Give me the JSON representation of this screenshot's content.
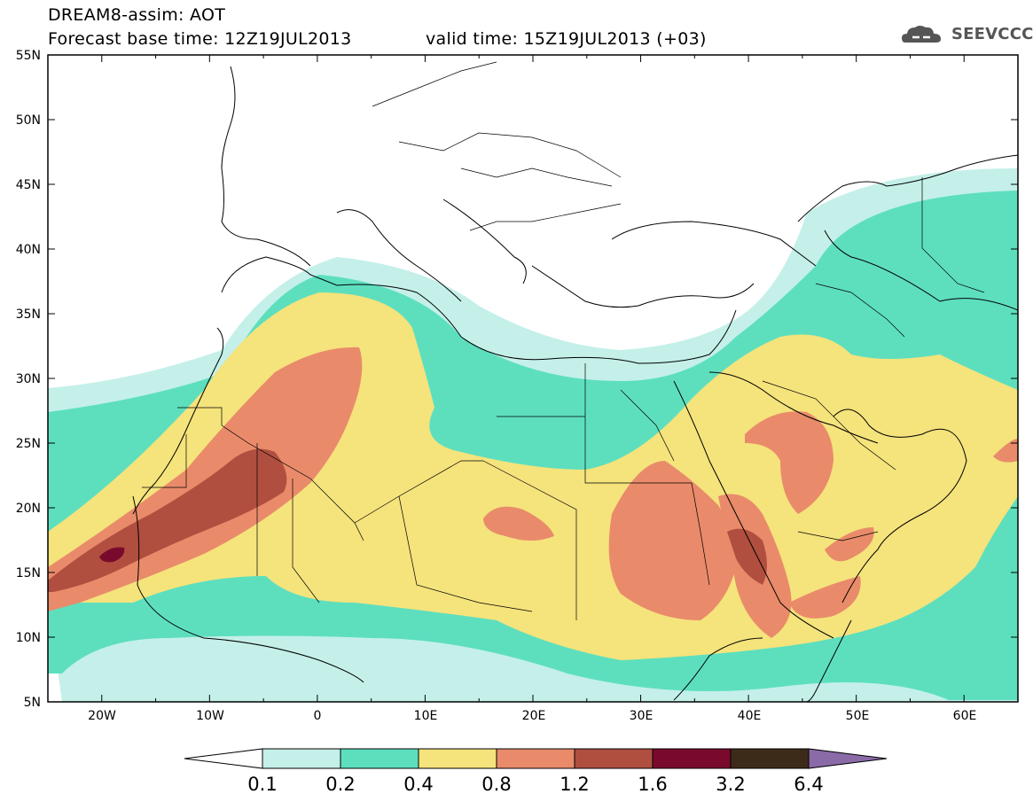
{
  "header": {
    "title_line1": "DREAM8-assim: AOT",
    "title_line2": "Forecast base time: 12Z19JUL2013",
    "valid_time": "valid time: 15Z19JUL2013 (+03)",
    "logo_text": "SEEVCCC",
    "logo_icon": "cloud-icon"
  },
  "map": {
    "lat_labels": [
      "55N",
      "50N",
      "45N",
      "40N",
      "35N",
      "30N",
      "25N",
      "20N",
      "15N",
      "10N",
      "5N"
    ],
    "lon_labels": [
      "20W",
      "10W",
      "0",
      "10E",
      "20E",
      "30E",
      "40E",
      "50E",
      "60E"
    ],
    "extent": {
      "lon_min": -25,
      "lon_max": 65,
      "lat_min": 5,
      "lat_max": 55
    }
  },
  "colorbar": {
    "levels": [
      "0.1",
      "0.2",
      "0.4",
      "0.8",
      "1.2",
      "1.6",
      "3.2",
      "6.4"
    ],
    "colors": [
      "#ffffff",
      "#c4f0e9",
      "#5ddfbe",
      "#f5e37c",
      "#e98b6a",
      "#b04f3f",
      "#7a0a2d",
      "#3d2b1a",
      "#8b6aa8"
    ]
  },
  "palette": {
    "aot_0_1": "#c4f0e9",
    "aot_0_2": "#5ddfbe",
    "aot_0_4": "#f5e37c",
    "aot_0_8": "#e98b6a",
    "aot_1_2": "#b04f3f",
    "aot_1_6": "#7a0a2d"
  }
}
